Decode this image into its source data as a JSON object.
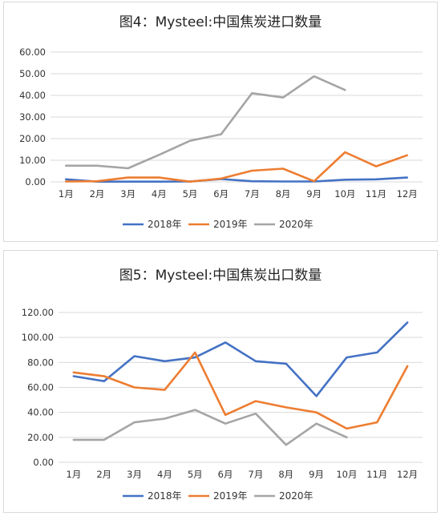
{
  "chart_data": [
    {
      "type": "line",
      "title": "图4：Mysteel:中国焦炭进口数量",
      "categories": [
        "1月",
        "2月",
        "3月",
        "4月",
        "5月",
        "6月",
        "7月",
        "8月",
        "9月",
        "10月",
        "11月",
        "12月"
      ],
      "ylim": [
        0,
        60
      ],
      "yticks": [
        "0.00",
        "10.00",
        "20.00",
        "30.00",
        "40.00",
        "50.00",
        "60.00"
      ],
      "grid": true,
      "legend_position": "bottom",
      "series": [
        {
          "name": "2018年",
          "color": "#4472c4",
          "values": [
            1.2,
            0.1,
            0.1,
            0.1,
            0.2,
            1.3,
            0.3,
            0.2,
            0.2,
            1.0,
            1.2,
            2.0
          ]
        },
        {
          "name": "2019年",
          "color": "#ed7d31",
          "values": [
            0.2,
            0.3,
            2.0,
            2.0,
            0.1,
            1.5,
            5.2,
            6.1,
            0.3,
            13.7,
            7.2,
            12.3
          ]
        },
        {
          "name": "2020年",
          "color": "#a5a5a5",
          "values": [
            7.5,
            7.5,
            6.3,
            12.5,
            19.0,
            22.0,
            41.0,
            39.0,
            48.8,
            42.5,
            null,
            null
          ]
        }
      ]
    },
    {
      "type": "line",
      "title": "图5：Mysteel:中国焦炭出口数量",
      "categories": [
        "1月",
        "2月",
        "3月",
        "4月",
        "5月",
        "6月",
        "7月",
        "8月",
        "9月",
        "10月",
        "11月",
        "12月"
      ],
      "ylim": [
        0,
        120
      ],
      "yticks": [
        "0.00",
        "20.00",
        "40.00",
        "60.00",
        "80.00",
        "100.00",
        "120.00"
      ],
      "grid": true,
      "legend_position": "bottom",
      "series": [
        {
          "name": "2018年",
          "color": "#4472c4",
          "values": [
            69,
            65,
            85,
            81,
            84,
            96,
            81,
            79,
            53,
            84,
            88,
            112
          ]
        },
        {
          "name": "2019年",
          "color": "#ed7d31",
          "values": [
            72,
            69,
            60,
            58,
            88,
            38,
            49,
            44,
            40,
            27,
            32,
            77
          ]
        },
        {
          "name": "2020年",
          "color": "#a5a5a5",
          "values": [
            18,
            18,
            32,
            35,
            42,
            31,
            39,
            14,
            31,
            20,
            null,
            null
          ]
        }
      ]
    }
  ]
}
